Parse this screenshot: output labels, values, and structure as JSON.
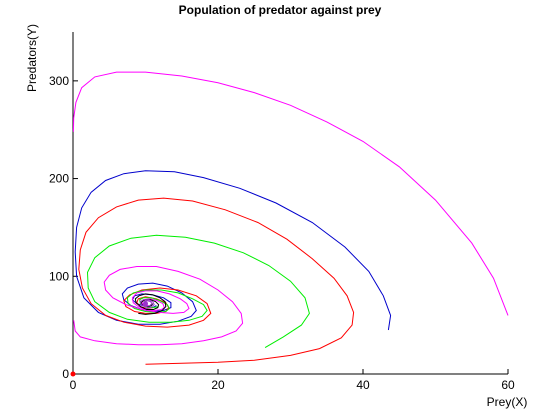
{
  "chart_data": {
    "type": "line",
    "title": "Population of predator against prey",
    "xlabel": "Prey(X)",
    "ylabel": "Predators(Y)",
    "xlim": [
      0,
      60
    ],
    "ylim": [
      0,
      350
    ],
    "xticks": [
      0,
      20,
      40,
      60
    ],
    "yticks": [
      0,
      100,
      200,
      300
    ],
    "grid": false,
    "equilibrium": {
      "x": 10,
      "y": 72,
      "color": "#9933cc"
    },
    "origin_marker": {
      "x": 0,
      "y": 0,
      "color": "#ff0000"
    },
    "series": [
      {
        "color": "#ff00ff",
        "x": [
          60,
          58,
          55,
          50,
          45,
          40,
          35,
          30,
          25,
          20,
          15,
          10,
          6,
          3,
          1.2,
          0.4,
          0.1,
          0.05,
          0.05
        ],
        "y": [
          60,
          98,
          134,
          178,
          212,
          238,
          258,
          275,
          288,
          298,
          305,
          309,
          309,
          304,
          293,
          278,
          262,
          248,
          248
        ]
      },
      {
        "color": "#0000cc",
        "x": [
          43.5,
          43.8,
          42.8,
          40.8,
          37.5,
          33,
          28,
          23,
          18,
          14,
          10,
          7,
          4.5,
          2.5,
          1.2,
          0.5,
          0.3,
          0.5,
          1.5,
          3.5,
          6,
          9,
          12,
          14.5,
          16.3,
          17,
          16.5,
          15,
          13,
          11,
          9,
          7.5,
          6.8,
          7,
          8,
          9.5,
          11,
          12.5,
          13.5,
          13.5,
          12.5,
          11,
          9.5,
          8.5,
          8.2,
          8.8,
          10,
          11,
          11.5
        ],
        "y": [
          45,
          60,
          80,
          105,
          130,
          155,
          175,
          190,
          201,
          207,
          208,
          205,
          198,
          186,
          170,
          150,
          125,
          100,
          78,
          63,
          55,
          51,
          51,
          54,
          59,
          65,
          74,
          83,
          90,
          93,
          92,
          88,
          82,
          76,
          70,
          66,
          64,
          65,
          68,
          73,
          78,
          81,
          82,
          80,
          76,
          72,
          69,
          68,
          70
        ]
      },
      {
        "color": "#ff0000",
        "x": [
          10,
          15,
          20,
          25,
          30,
          34,
          37,
          38.5,
          38.7,
          37.8,
          36,
          33,
          29.5,
          25.5,
          21,
          16.5,
          12.5,
          9,
          6,
          3.5,
          1.8,
          1,
          0.8,
          1.3,
          2.5,
          4.5,
          7,
          10,
          13,
          16,
          18,
          19,
          18.5,
          17,
          14.5,
          12,
          9.5,
          7.8,
          7,
          7.3,
          8.5,
          10,
          11.5,
          12.8,
          13.2,
          12.8,
          11.5,
          10,
          9,
          8.8,
          9.3,
          10.2,
          11
        ],
        "y": [
          10,
          11,
          12,
          14,
          19,
          26,
          37,
          50,
          63,
          80,
          98,
          118,
          138,
          155,
          168,
          177,
          180,
          178,
          171,
          160,
          145,
          127,
          107,
          88,
          72,
          60,
          53,
          49,
          48,
          50,
          55,
          62,
          72,
          80,
          86,
          88,
          86,
          81,
          75,
          69,
          64,
          62,
          62,
          64,
          68,
          73,
          77,
          79,
          77,
          73,
          69,
          67,
          68
        ]
      },
      {
        "color": "#00ee00",
        "x": [
          26.5,
          29,
          31.5,
          32.6,
          32,
          30,
          27,
          23.5,
          19.5,
          15.5,
          11.5,
          8,
          5,
          3,
          2,
          2.1,
          3,
          5,
          7.5,
          10.5,
          13.5,
          16,
          17.8,
          18.5,
          18,
          16.5,
          14.5,
          12.2,
          10,
          8.3,
          7.5,
          7.6,
          8.5,
          10,
          11.5,
          12.8,
          13.3,
          13,
          12,
          10.8,
          9.7,
          9.2,
          9.3,
          10,
          11,
          11.8
        ],
        "y": [
          27,
          38,
          50,
          62,
          78,
          95,
          111,
          124,
          134,
          140,
          142,
          139,
          131,
          119,
          104,
          88,
          74,
          63,
          56,
          53,
          53,
          55,
          59,
          65,
          71,
          77,
          83,
          86,
          86,
          83,
          78,
          72,
          67,
          64,
          63,
          64,
          67,
          71,
          75,
          78,
          78,
          76,
          72,
          69,
          68,
          69
        ]
      },
      {
        "color": "#ff00ff",
        "x": [
          0.1,
          0.3,
          1,
          3,
          6,
          9,
          12,
          15,
          18,
          20.5,
          22.5,
          23.4,
          23.2,
          22,
          20,
          17.5,
          14.5,
          11.5,
          8.8,
          6.5,
          5,
          4.3,
          4.5,
          5.5,
          7.3,
          9.5,
          11.8,
          13.8,
          15.3,
          16,
          15.7,
          14.8,
          13.3,
          11.6,
          10,
          8.8,
          8.2,
          8.3,
          9,
          10,
          11.2,
          12.2,
          12.6,
          12.4,
          11.6,
          10.6,
          9.8,
          9.5,
          9.7,
          10.4
        ],
        "y": [
          55,
          44,
          38,
          34,
          31,
          30,
          30,
          31,
          34,
          38,
          44,
          52,
          62,
          74,
          86,
          97,
          105,
          110,
          110,
          107,
          101,
          94,
          86,
          78,
          71,
          66,
          63,
          62,
          63,
          67,
          72,
          77,
          82,
          85,
          85,
          83,
          78,
          73,
          69,
          66,
          65,
          66,
          68,
          72,
          75,
          77,
          76,
          73,
          71,
          70
        ]
      },
      {
        "color": "#000000",
        "x": [
          9,
          10,
          11.3,
          12.3,
          12.8,
          12.7,
          12,
          11,
          10,
          9.1,
          8.6,
          8.7,
          9.3,
          10.2,
          11.1,
          11.7,
          11.8,
          11.4,
          10.7,
          10,
          9.5,
          9.4,
          9.7,
          10.3,
          10.8,
          11
        ],
        "y": [
          62,
          61,
          62,
          65,
          69,
          74,
          78,
          81,
          82,
          80,
          77,
          73,
          69,
          66,
          66,
          68,
          71,
          74,
          76,
          76,
          74,
          72,
          70,
          69,
          70,
          72
        ]
      },
      {
        "color": "#9933cc",
        "x": [
          10,
          10.7,
          11.2,
          11,
          10.4,
          9.7,
          9.3,
          9.4,
          10,
          10.6,
          10.9,
          10.7,
          10.2,
          9.8
        ],
        "y": [
          67,
          68,
          71,
          74,
          76,
          76,
          74,
          71,
          69,
          70,
          72,
          74,
          75,
          74
        ]
      }
    ]
  }
}
